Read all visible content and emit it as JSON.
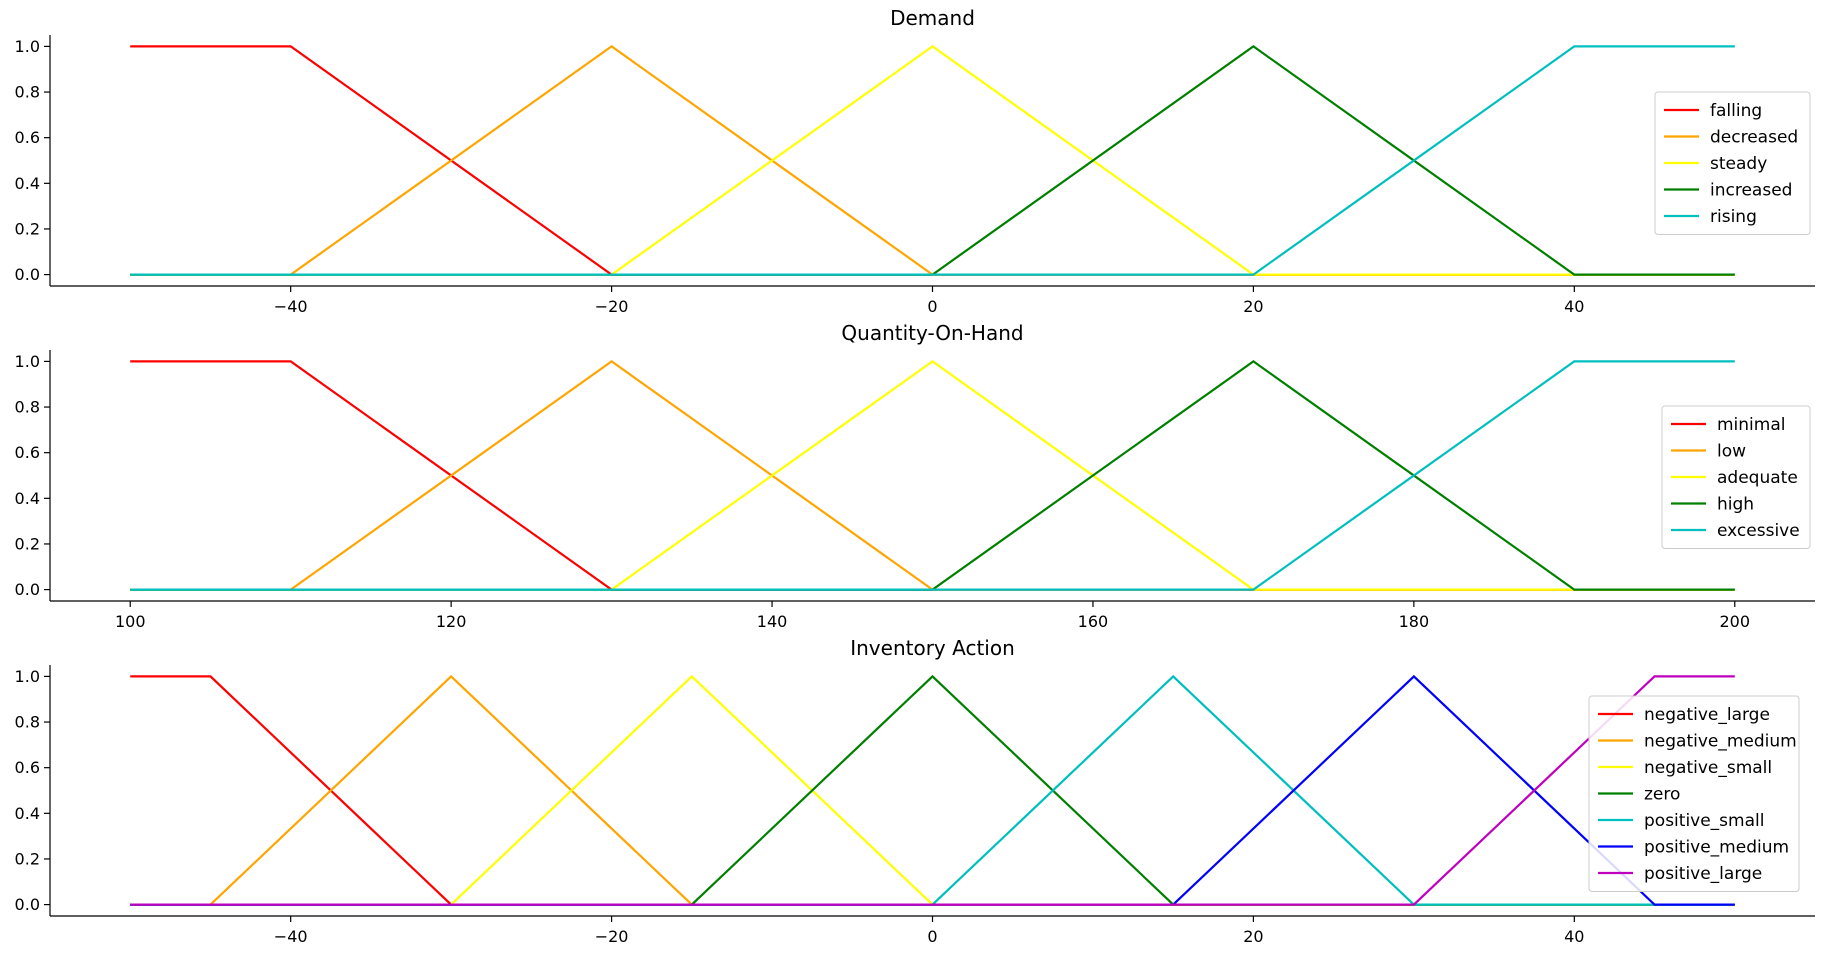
{
  "chart_data": [
    {
      "type": "line",
      "title": "Demand",
      "xlabel": "",
      "ylabel": "",
      "xlim": [
        -55,
        55
      ],
      "ylim": [
        -0.05,
        1.05
      ],
      "xticks": [
        -40,
        -20,
        0,
        20,
        40
      ],
      "yticks": [
        0.0,
        0.2,
        0.4,
        0.6,
        0.8,
        1.0
      ],
      "grid": false,
      "legend": "right",
      "series": [
        {
          "name": "falling",
          "color": "#ff0000",
          "x": [
            -50,
            -40,
            -20,
            50
          ],
          "y": [
            1,
            1,
            0,
            0
          ]
        },
        {
          "name": "decreased",
          "color": "#ffa500",
          "x": [
            -50,
            -40,
            -20,
            0,
            50
          ],
          "y": [
            0,
            0,
            1,
            0,
            0
          ]
        },
        {
          "name": "steady",
          "color": "#ffff00",
          "x": [
            -50,
            -20,
            0,
            20,
            50
          ],
          "y": [
            0,
            0,
            1,
            0,
            0
          ]
        },
        {
          "name": "increased",
          "color": "#008000",
          "x": [
            -50,
            0,
            20,
            40,
            50
          ],
          "y": [
            0,
            0,
            1,
            0,
            0
          ]
        },
        {
          "name": "rising",
          "color": "#00bfbf",
          "x": [
            -50,
            20,
            40,
            50
          ],
          "y": [
            0,
            0,
            1,
            1
          ]
        }
      ]
    },
    {
      "type": "line",
      "title": "Quantity-On-Hand",
      "xlabel": "",
      "ylabel": "",
      "xlim": [
        95,
        205
      ],
      "ylim": [
        -0.05,
        1.05
      ],
      "xticks": [
        100,
        120,
        140,
        160,
        180,
        200
      ],
      "yticks": [
        0.0,
        0.2,
        0.4,
        0.6,
        0.8,
        1.0
      ],
      "grid": false,
      "legend": "right",
      "series": [
        {
          "name": "minimal",
          "color": "#ff0000",
          "x": [
            100,
            110,
            130,
            200
          ],
          "y": [
            1,
            1,
            0,
            0
          ]
        },
        {
          "name": "low",
          "color": "#ffa500",
          "x": [
            100,
            110,
            130,
            150,
            200
          ],
          "y": [
            0,
            0,
            1,
            0,
            0
          ]
        },
        {
          "name": "adequate",
          "color": "#ffff00",
          "x": [
            100,
            130,
            150,
            170,
            200
          ],
          "y": [
            0,
            0,
            1,
            0,
            0
          ]
        },
        {
          "name": "high",
          "color": "#008000",
          "x": [
            100,
            150,
            170,
            190,
            200
          ],
          "y": [
            0,
            0,
            1,
            0,
            0
          ]
        },
        {
          "name": "excessive",
          "color": "#00bfbf",
          "x": [
            100,
            170,
            190,
            200
          ],
          "y": [
            0,
            0,
            1,
            1
          ]
        }
      ]
    },
    {
      "type": "line",
      "title": "Inventory Action",
      "xlabel": "",
      "ylabel": "",
      "xlim": [
        -55,
        55
      ],
      "ylim": [
        -0.05,
        1.05
      ],
      "xticks": [
        -40,
        -20,
        0,
        20,
        40
      ],
      "yticks": [
        0.0,
        0.2,
        0.4,
        0.6,
        0.8,
        1.0
      ],
      "grid": false,
      "legend": "upper right",
      "series": [
        {
          "name": "negative_large",
          "color": "#ff0000",
          "x": [
            -50,
            -45,
            -30,
            50
          ],
          "y": [
            1,
            1,
            0,
            0
          ]
        },
        {
          "name": "negative_medium",
          "color": "#ffa500",
          "x": [
            -50,
            -45,
            -30,
            -15,
            50
          ],
          "y": [
            0,
            0,
            1,
            0,
            0
          ]
        },
        {
          "name": "negative_small",
          "color": "#ffff00",
          "x": [
            -50,
            -30,
            -15,
            0,
            50
          ],
          "y": [
            0,
            0,
            1,
            0,
            0
          ]
        },
        {
          "name": "zero",
          "color": "#008000",
          "x": [
            -50,
            -15,
            0,
            15,
            50
          ],
          "y": [
            0,
            0,
            1,
            0,
            0
          ]
        },
        {
          "name": "positive_small",
          "color": "#00bfbf",
          "x": [
            -50,
            0,
            15,
            30,
            50
          ],
          "y": [
            0,
            0,
            1,
            0,
            0
          ]
        },
        {
          "name": "positive_medium",
          "color": "#0000ff",
          "x": [
            -50,
            15,
            30,
            45,
            50
          ],
          "y": [
            0,
            0,
            1,
            0,
            0
          ]
        },
        {
          "name": "positive_large",
          "color": "#bf00bf",
          "x": [
            -50,
            30,
            45,
            50
          ],
          "y": [
            0,
            0,
            1,
            1
          ]
        }
      ]
    }
  ]
}
